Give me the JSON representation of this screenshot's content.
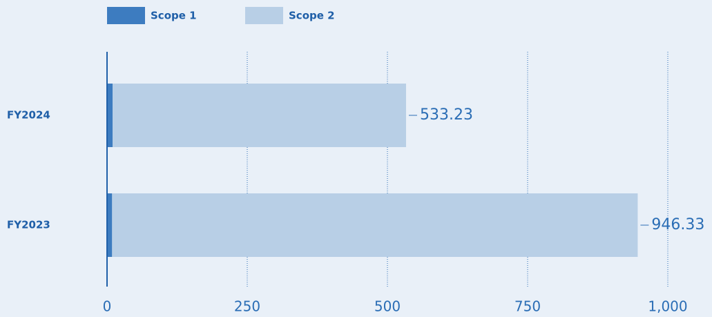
{
  "chart_data": {
    "type": "stacked-barh",
    "categories": [
      "FY2024",
      "FY2023"
    ],
    "series": [
      {
        "name": "Scope 1",
        "color": "#3d7cc0",
        "values": [
          10,
          9
        ]
      },
      {
        "name": "Scope 2",
        "color": "#b8cfe6",
        "values": [
          523.23,
          937.33
        ]
      }
    ],
    "totals": [
      533.23,
      946.33
    ],
    "xlim": [
      0,
      1000
    ],
    "xticks": [
      0,
      250,
      500,
      750,
      {
        "value": 1000,
        "label": "1,000"
      }
    ],
    "grid": true
  }
}
